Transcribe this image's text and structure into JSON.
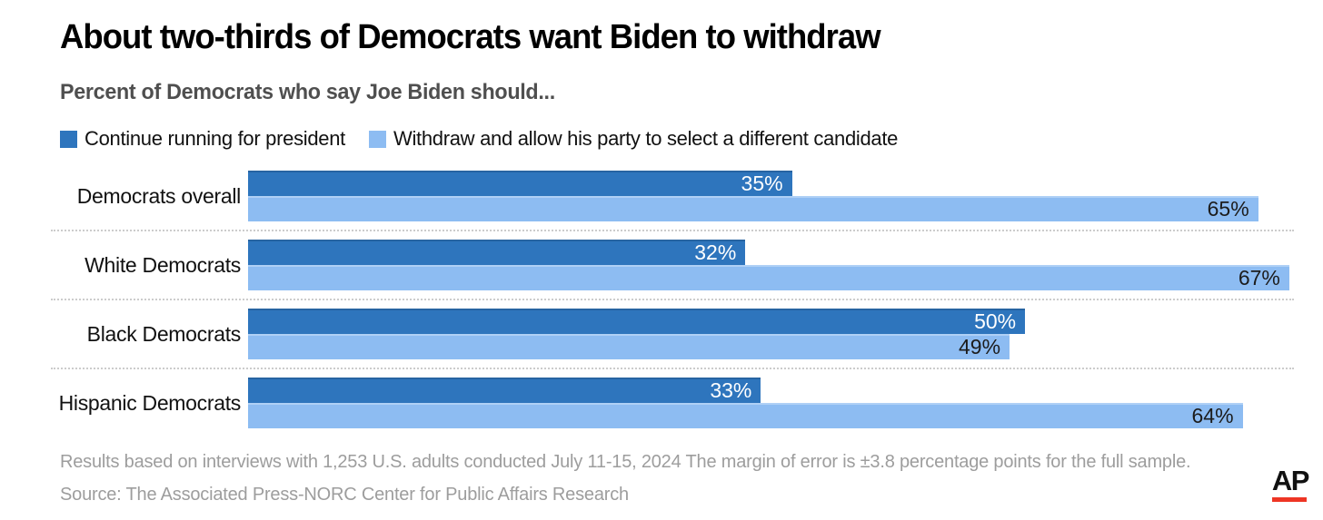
{
  "title": "About two-thirds of Democrats want Biden to withdraw",
  "subtitle": "Percent of Democrats who say Joe Biden should...",
  "legend": [
    {
      "label": "Continue running for president",
      "color": "#2e75bd"
    },
    {
      "label": "Withdraw and allow his party to select a different candidate",
      "color": "#8dbcf2"
    }
  ],
  "chart_data": {
    "type": "bar",
    "orientation": "horizontal",
    "title": "About two-thirds of Democrats want Biden to withdraw",
    "subtitle": "Percent of Democrats who say Joe Biden should...",
    "categories": [
      "Democrats overall",
      "White Democrats",
      "Black Democrats",
      "Hispanic Democrats"
    ],
    "series": [
      {
        "name": "Continue running for president",
        "color": "#2e75bd",
        "values": [
          35,
          32,
          50,
          33
        ]
      },
      {
        "name": "Withdraw and allow his party to select a different candidate",
        "color": "#8dbcf2",
        "values": [
          65,
          67,
          49,
          64
        ]
      }
    ],
    "value_suffix": "%",
    "xlim": [
      0,
      67.3
    ],
    "grid": false,
    "legend_position": "top",
    "value_labels": "inside-end"
  },
  "footer": {
    "note": "Results based on interviews with 1,253 U.S. adults conducted July 11-15, 2024 The margin of error is ±3.8 percentage points for the full sample.",
    "source": "Source: The Associated Press-NORC Center for Public Affairs Research",
    "logo_text": "AP"
  },
  "colors": {
    "bar_dark": "#2e75bd",
    "bar_light": "#8dbcf2",
    "title_text": "#000000",
    "subtitle_text": "#4f4f4f",
    "footer_text": "#9d9d9d",
    "separator": "#cccccc",
    "logo_red": "#ee3524",
    "value_on_dark": "#ffffff",
    "value_on_light": "#1c1c1c"
  }
}
